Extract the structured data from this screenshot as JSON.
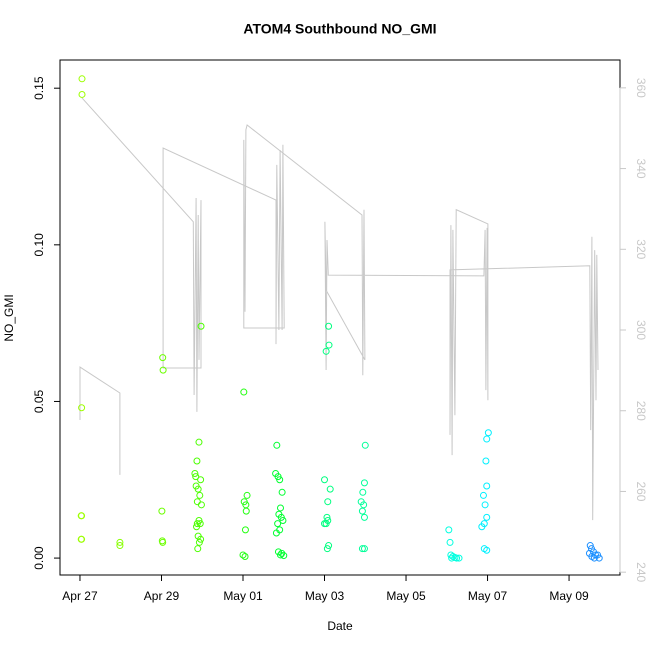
{
  "chart_data": {
    "type": "scatter",
    "title": "ATOM4 Southbound NO_GMI",
    "x_label": "Date",
    "y_label": "NO_GMI",
    "xlim": [
      -0.49,
      13.25
    ],
    "xticks": [
      {
        "value": 0,
        "label": "Apr 27"
      },
      {
        "value": 2,
        "label": "Apr 29"
      },
      {
        "value": 4,
        "label": "May 01"
      },
      {
        "value": 6,
        "label": "May 03"
      },
      {
        "value": 8,
        "label": "May 05"
      },
      {
        "value": 10,
        "label": "May 07"
      },
      {
        "value": 12,
        "label": "May 09"
      }
    ],
    "ylim": [
      -0.0054,
      0.159
    ],
    "yticks": [
      {
        "value": 0,
        "label": "0.00"
      },
      0.05,
      {
        "value": 0.1,
        "label": "0.10"
      },
      0.15
    ],
    "y2lim": [
      239.3,
      366.9
    ],
    "y2ticks": [
      240,
      260,
      280,
      300,
      320,
      340,
      360
    ],
    "series": [
      {
        "color": "#9cff00",
        "x": [
          0.05,
          0.05,
          0.04,
          0.03,
          0.04,
          0.03,
          0.04
        ],
        "values": [
          0.153,
          0.148,
          0.048,
          0.0135,
          0.0135,
          0.006,
          0.006
        ]
      },
      {
        "color": "#88ff00",
        "x": [
          0.98,
          0.98
        ],
        "values": [
          0.005,
          0.004
        ]
      },
      {
        "color": "#6cff00",
        "x": [
          2.03,
          2.04,
          2.01,
          2.02,
          2.03
        ],
        "values": [
          0.064,
          0.06,
          0.015,
          0.0055,
          0.005
        ]
      },
      {
        "color": "#4cff00",
        "x": [
          2.97,
          2.92,
          2.87,
          2.82,
          2.84,
          2.96,
          2.85,
          2.9,
          2.94,
          2.88,
          2.98,
          2.92,
          2.88,
          2.95,
          2.86,
          2.9,
          2.96,
          2.93,
          2.89
        ],
        "values": [
          0.074,
          0.037,
          0.031,
          0.027,
          0.026,
          0.025,
          0.023,
          0.022,
          0.02,
          0.018,
          0.017,
          0.012,
          0.011,
          0.011,
          0.01,
          0.007,
          0.006,
          0.005,
          0.003
        ]
      },
      {
        "color": "#22ff10",
        "x": [
          4.02,
          4.1,
          4.03,
          4.07,
          4.08,
          4.06,
          4.0,
          4.05
        ],
        "values": [
          0.053,
          0.02,
          0.018,
          0.017,
          0.015,
          0.009,
          0.001,
          0.0005
        ]
      },
      {
        "color": "#00ff30",
        "x": [
          4.83,
          4.8,
          4.86,
          4.9,
          4.96,
          4.92,
          4.88,
          4.94,
          4.98,
          4.85,
          4.9,
          4.82,
          4.87,
          4.95,
          4.92,
          5.0
        ],
        "values": [
          0.036,
          0.027,
          0.026,
          0.025,
          0.021,
          0.016,
          0.014,
          0.013,
          0.012,
          0.011,
          0.009,
          0.008,
          0.002,
          0.0015,
          0.001,
          0.0008
        ]
      },
      {
        "color": "#00ff80",
        "x": [
          6.1,
          6.11,
          6.04,
          6.0,
          6.14,
          6.08,
          6.06,
          6.08,
          6.04,
          6.0,
          6.1,
          6.07
        ],
        "values": [
          0.074,
          0.068,
          0.066,
          0.025,
          0.022,
          0.018,
          0.013,
          0.012,
          0.011,
          0.011,
          0.004,
          0.003
        ]
      },
      {
        "color": "#00ff99",
        "x": [
          7.0,
          6.98,
          6.94,
          6.9,
          6.96,
          6.93,
          6.98,
          6.93,
          6.98
        ],
        "values": [
          0.036,
          0.024,
          0.021,
          0.018,
          0.017,
          0.015,
          0.013,
          0.003,
          0.003
        ]
      },
      {
        "color": "#00ffe0",
        "x": [
          9.05,
          9.08,
          9.1,
          9.15,
          9.2,
          9.12,
          9.24,
          9.3
        ],
        "values": [
          0.009,
          0.005,
          0.001,
          0.0005,
          0.0002,
          0,
          0,
          0
        ]
      },
      {
        "color": "#00f0ff",
        "x": [
          10.02,
          9.98,
          9.96,
          9.98,
          9.9,
          9.94,
          9.98,
          9.92,
          9.86,
          9.92,
          9.98
        ],
        "values": [
          0.04,
          0.038,
          0.031,
          0.023,
          0.02,
          0.017,
          0.013,
          0.011,
          0.01,
          0.003,
          0.0025
        ]
      },
      {
        "color": "#1e90ff",
        "x": [
          12.52,
          12.55,
          12.6,
          12.5,
          12.65,
          12.56,
          12.62,
          12.7,
          12.74
        ],
        "values": [
          0.004,
          0.003,
          0.002,
          0.0015,
          0.001,
          0.0005,
          0,
          0.001,
          0
        ]
      }
    ],
    "line": {
      "color": "#c8c8c8",
      "axis": "y2",
      "x": [
        0,
        0,
        0.98,
        0.98,
        null,
        0.05,
        2.78,
        2.8,
        2.85,
        2.87,
        2.9,
        2.92,
        2.97,
        2.97,
        2.04,
        2.04,
        4.81,
        4.81,
        4.83,
        4.88,
        4.91,
        4.96,
        4.98,
        5.01,
        4.02,
        4.02,
        4.05,
        4.07,
        4.1,
        6.92,
        6.94,
        6.97,
        6.99,
        6.04,
        6.01,
        6.04,
        6.06,
        6.09,
        6.09,
        9.91,
        9.94,
        9.96,
        9.99,
        10.01,
        10.01,
        9.23,
        9.2,
        9.15,
        9.13,
        9.1,
        9.08,
        9.08,
        12.51,
        12.53,
        12.56,
        12.58,
        12.63,
        12.66,
        12.68,
        12.71
      ],
      "values": [
        277.7,
        290.8,
        284.4,
        264.1,
        null,
        357.5,
        326.8,
        283.9,
        332.7,
        279.7,
        328.5,
        292.6,
        332.2,
        290.6,
        290.6,
        345.1,
        332.2,
        296.5,
        340.9,
        300.0,
        344.6,
        300.0,
        345.9,
        300.5,
        300.5,
        347.1,
        304.5,
        349.6,
        350.8,
        328.5,
        288.8,
        329.8,
        292.6,
        309.9,
        326.8,
        290.1,
        322.3,
        314.4,
        313.6,
        313.4,
        324.8,
        285.1,
        325.3,
        282.6,
        326.3,
        329.8,
        278.9,
        324.8,
        269.0,
        326.0,
        274.0,
        314.9,
        315.9,
        275.2,
        323.1,
        252.9,
        319.8,
        282.6,
        318.6,
        290.1
      ]
    }
  }
}
